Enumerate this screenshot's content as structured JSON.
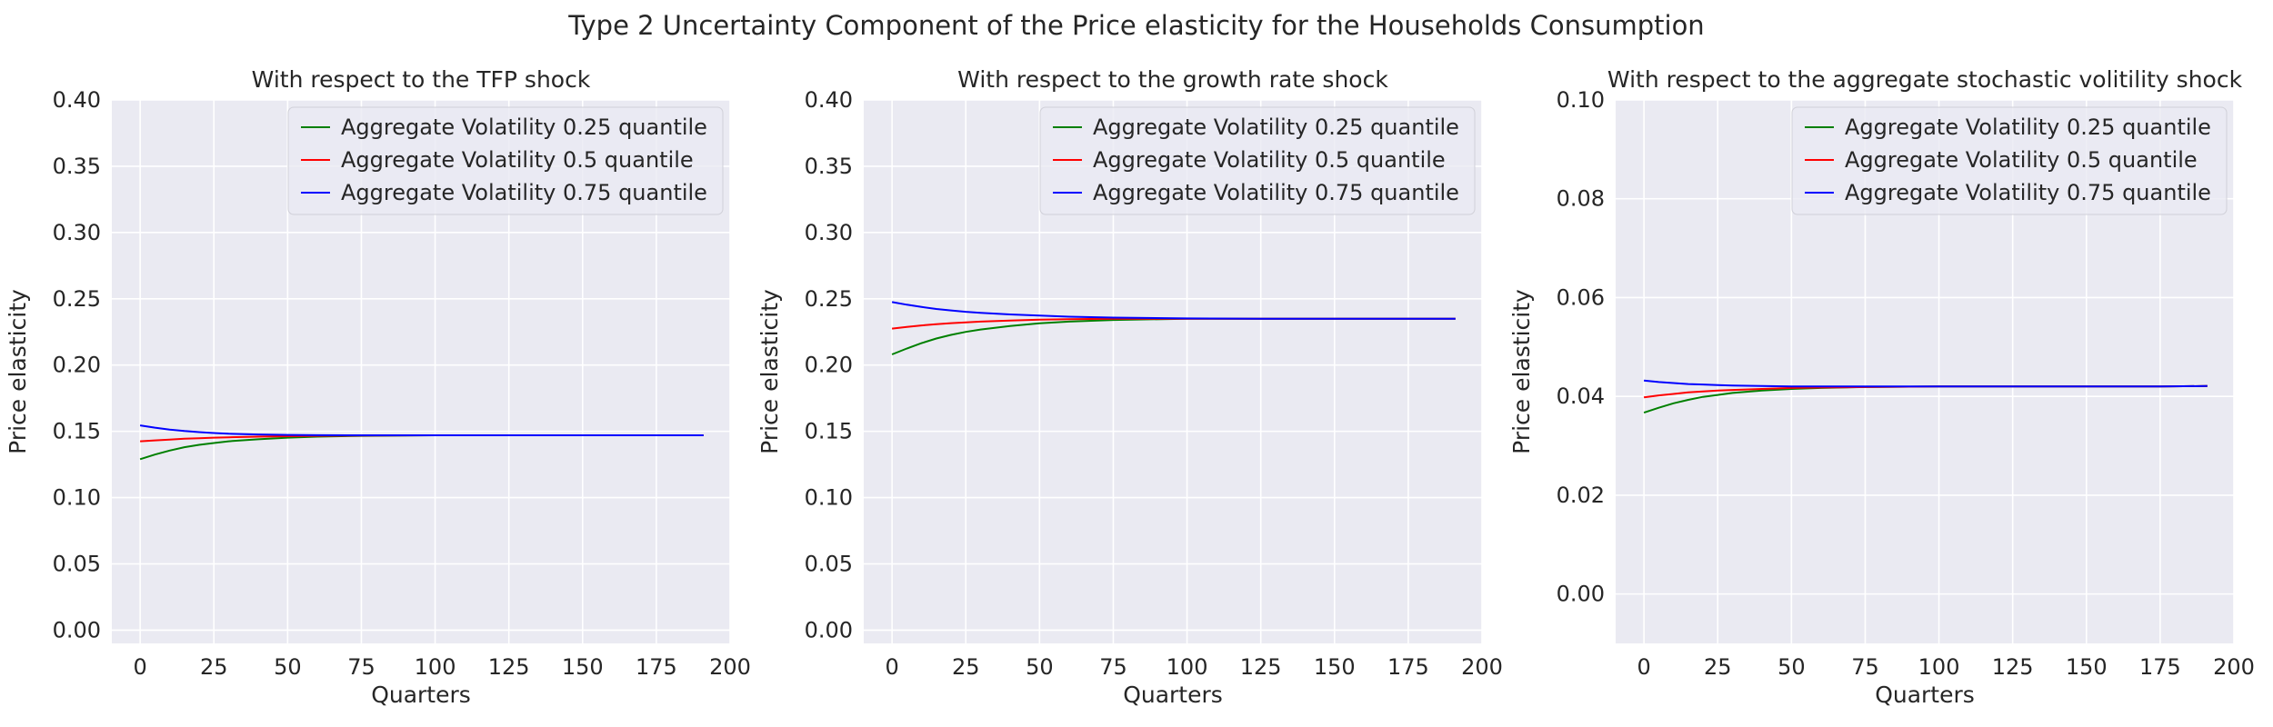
{
  "figure": {
    "title": "Type 2 Uncertainty Component of the Price elasticity for the Households Consumption"
  },
  "chart_data": [
    {
      "type": "line",
      "title": "With respect to the TFP shock",
      "xlabel": "Quarters",
      "ylabel": "Price elasticity",
      "xlim": [
        -9.6,
        200
      ],
      "ylim": [
        -0.01,
        0.4
      ],
      "xticks": [
        "0",
        "25",
        "50",
        "75",
        "100",
        "125",
        "150",
        "175",
        "200"
      ],
      "yticks": [
        "0.00",
        "0.05",
        "0.10",
        "0.15",
        "0.20",
        "0.25",
        "0.30",
        "0.35",
        "0.40"
      ],
      "grid": true,
      "legend_position": "top-right",
      "x": [
        0,
        5,
        10,
        15,
        20,
        25,
        30,
        40,
        50,
        60,
        75,
        100,
        125,
        150,
        175,
        191
      ],
      "series": [
        {
          "name": "Aggregate Volatility 0.25 quantile",
          "color": "#008000",
          "values": [
            0.129,
            0.1325,
            0.1355,
            0.138,
            0.1398,
            0.1412,
            0.1425,
            0.144,
            0.1452,
            0.146,
            0.1466,
            0.147,
            0.147,
            0.147,
            0.147,
            0.147
          ]
        },
        {
          "name": "Aggregate Volatility 0.5 quantile",
          "color": "#ff0000",
          "values": [
            0.1425,
            0.1432,
            0.1438,
            0.1444,
            0.1448,
            0.1452,
            0.1455,
            0.146,
            0.1463,
            0.1466,
            0.1468,
            0.147,
            0.147,
            0.147,
            0.147,
            0.147
          ]
        },
        {
          "name": "Aggregate Volatility 0.75 quantile",
          "color": "#0000ff",
          "values": [
            0.1545,
            0.1528,
            0.1513,
            0.1502,
            0.1494,
            0.1487,
            0.1482,
            0.1476,
            0.1473,
            0.1471,
            0.147,
            0.147,
            0.147,
            0.147,
            0.147,
            0.147
          ]
        }
      ]
    },
    {
      "type": "line",
      "title": "With respect to the growth rate shock",
      "xlabel": "Quarters",
      "ylabel": "Price elasticity",
      "xlim": [
        -9.6,
        200
      ],
      "ylim": [
        -0.01,
        0.4
      ],
      "xticks": [
        "0",
        "25",
        "50",
        "75",
        "100",
        "125",
        "150",
        "175",
        "200"
      ],
      "yticks": [
        "0.00",
        "0.05",
        "0.10",
        "0.15",
        "0.20",
        "0.25",
        "0.30",
        "0.35",
        "0.40"
      ],
      "grid": true,
      "legend_position": "top-right",
      "x": [
        0,
        5,
        10,
        15,
        20,
        25,
        30,
        40,
        50,
        60,
        75,
        100,
        125,
        150,
        175,
        191
      ],
      "series": [
        {
          "name": "Aggregate Volatility 0.25 quantile",
          "color": "#008000",
          "values": [
            0.208,
            0.2125,
            0.2165,
            0.22,
            0.2228,
            0.225,
            0.2268,
            0.2295,
            0.2315,
            0.2328,
            0.234,
            0.235,
            0.235,
            0.235,
            0.235,
            0.235
          ]
        },
        {
          "name": "Aggregate Volatility 0.5 quantile",
          "color": "#ff0000",
          "values": [
            0.2275,
            0.2288,
            0.2299,
            0.2308,
            0.2316,
            0.2322,
            0.2328,
            0.2336,
            0.2342,
            0.2346,
            0.2349,
            0.235,
            0.235,
            0.235,
            0.235,
            0.235
          ]
        },
        {
          "name": "Aggregate Volatility 0.75 quantile",
          "color": "#0000ff",
          "values": [
            0.2475,
            0.2455,
            0.2438,
            0.2423,
            0.2412,
            0.2402,
            0.2394,
            0.2382,
            0.2373,
            0.2365,
            0.2358,
            0.2352,
            0.235,
            0.235,
            0.235,
            0.235
          ]
        }
      ]
    },
    {
      "type": "line",
      "title": "With respect to the aggregate stochastic volitility shock",
      "xlabel": "Quarters",
      "ylabel": "Price elasticity",
      "xlim": [
        -9.6,
        200
      ],
      "ylim": [
        -0.01,
        0.1
      ],
      "xticks": [
        "0",
        "25",
        "50",
        "75",
        "100",
        "125",
        "150",
        "175",
        "200"
      ],
      "yticks": [
        "0.00",
        "0.02",
        "0.04",
        "0.06",
        "0.08",
        "0.10"
      ],
      "grid": true,
      "legend_position": "top-right",
      "x": [
        0,
        5,
        10,
        15,
        20,
        25,
        30,
        40,
        50,
        60,
        75,
        100,
        125,
        150,
        175,
        191
      ],
      "series": [
        {
          "name": "Aggregate Volatility 0.25 quantile",
          "color": "#008000",
          "values": [
            0.0367,
            0.0377,
            0.0386,
            0.0393,
            0.0399,
            0.0403,
            0.0407,
            0.0412,
            0.0415,
            0.0417,
            0.0419,
            0.042,
            0.042,
            0.042,
            0.042,
            0.0421
          ]
        },
        {
          "name": "Aggregate Volatility 0.5 quantile",
          "color": "#ff0000",
          "values": [
            0.0398,
            0.0402,
            0.0405,
            0.0408,
            0.041,
            0.0412,
            0.0413,
            0.0415,
            0.0417,
            0.0418,
            0.0419,
            0.042,
            0.042,
            0.042,
            0.042,
            0.0421
          ]
        },
        {
          "name": "Aggregate Volatility 0.75 quantile",
          "color": "#0000ff",
          "values": [
            0.0432,
            0.0429,
            0.0427,
            0.0425,
            0.0424,
            0.0423,
            0.0422,
            0.0421,
            0.042,
            0.042,
            0.042,
            0.042,
            0.042,
            0.042,
            0.042,
            0.0421
          ]
        }
      ]
    }
  ]
}
